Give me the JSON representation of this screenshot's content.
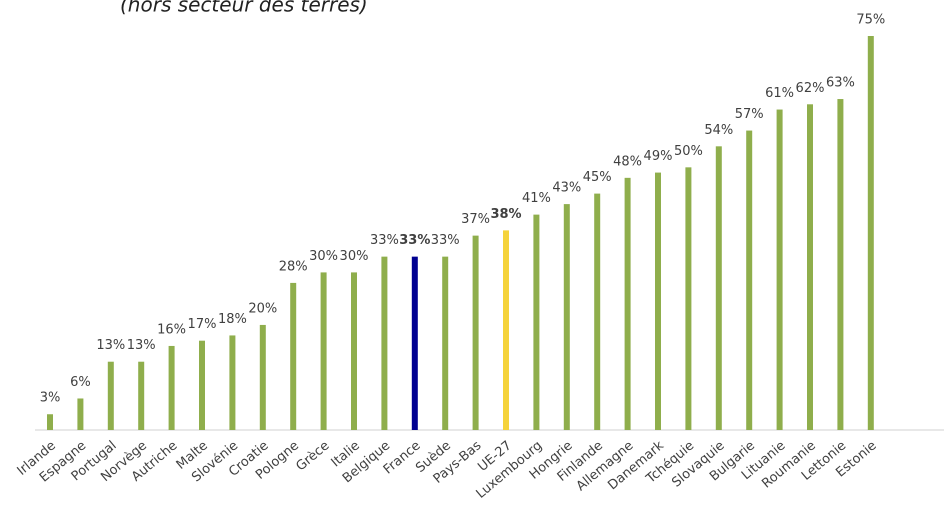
{
  "chart_data": {
    "type": "bar",
    "subtitle": "(hors secteur des terres)",
    "categories": [
      "Irlande",
      "Espagne",
      "Portugal",
      "Norvège",
      "Autriche",
      "Malte",
      "Slovénie",
      "Croatie",
      "Pologne",
      "Grèce",
      "Italie",
      "Belgique",
      "France",
      "Suède",
      "Pays-Bas",
      "UE-27",
      "Luxembourg",
      "Hongrie",
      "Finlande",
      "Allemagne",
      "Danemark",
      "Tchéquie",
      "Slovaquie",
      "Bulgarie",
      "Lituanie",
      "Roumanie",
      "Lettonie",
      "Estonie"
    ],
    "values": [
      3,
      6,
      13,
      13,
      16,
      17,
      18,
      20,
      28,
      30,
      30,
      33,
      33,
      33,
      37,
      38,
      41,
      43,
      45,
      48,
      49,
      50,
      54,
      57,
      61,
      62,
      63,
      75
    ],
    "value_labels": [
      "3%",
      "6%",
      "13%",
      "13%",
      "16%",
      "17%",
      "18%",
      "20%",
      "28%",
      "30%",
      "30%",
      "33%",
      "33%",
      "33%",
      "37%",
      "38%",
      "41%",
      "43%",
      "45%",
      "48%",
      "49%",
      "50%",
      "54%",
      "57%",
      "61%",
      "62%",
      "63%",
      "75%"
    ],
    "color": "#8fae4c",
    "colors": [
      "#8fae4c",
      "#8fae4c",
      "#8fae4c",
      "#8fae4c",
      "#8fae4c",
      "#8fae4c",
      "#8fae4c",
      "#8fae4c",
      "#8fae4c",
      "#8fae4c",
      "#8fae4c",
      "#8fae4c",
      "#000091",
      "#8fae4c",
      "#8fae4c",
      "#f5d33b",
      "#8fae4c",
      "#8fae4c",
      "#8fae4c",
      "#8fae4c",
      "#8fae4c",
      "#8fae4c",
      "#8fae4c",
      "#8fae4c",
      "#8fae4c",
      "#8fae4c",
      "#8fae4c",
      "#8fae4c"
    ]
  }
}
